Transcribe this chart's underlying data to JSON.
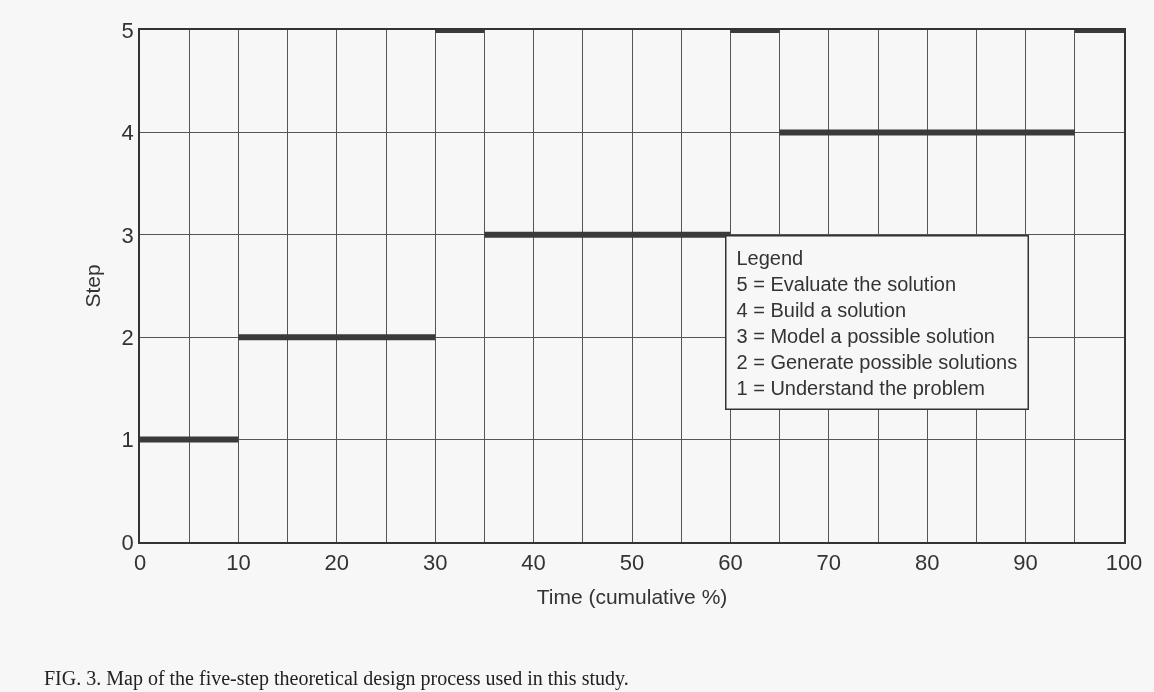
{
  "chart_data": {
    "type": "line",
    "xlabel": "Time (cumulative %)",
    "ylabel": "Step",
    "xlim": [
      0,
      100
    ],
    "ylim": [
      0,
      5
    ],
    "xticks": [
      0,
      {
        "value": 5,
        "label": null
      },
      10,
      {
        "value": 15,
        "label": null
      },
      20,
      {
        "value": 25,
        "label": null
      },
      30,
      {
        "value": 35,
        "label": null
      },
      40,
      {
        "value": 45,
        "label": null
      },
      50,
      {
        "value": 55,
        "label": null
      },
      60,
      {
        "value": 65,
        "label": null
      },
      70,
      {
        "value": 75,
        "label": null
      },
      80,
      {
        "value": 85,
        "label": null
      },
      90,
      {
        "value": 95,
        "label": null
      },
      100
    ],
    "yticks": [
      0,
      1,
      2,
      3,
      4,
      5
    ],
    "grid": true,
    "marker": "none",
    "line_style": "solid",
    "series": [
      {
        "color": "#3a3a3a",
        "x": [
          0,
          10
        ],
        "values": [
          1,
          1
        ]
      },
      {
        "color": "#3a3a3a",
        "x": [
          10,
          30
        ],
        "values": [
          2,
          2
        ]
      },
      {
        "color": "#3a3a3a",
        "x": [
          30,
          35
        ],
        "values": [
          5,
          5
        ]
      },
      {
        "color": "#3a3a3a",
        "x": [
          35,
          60
        ],
        "values": [
          3,
          3
        ]
      },
      {
        "color": "#3a3a3a",
        "x": [
          60,
          65
        ],
        "values": [
          5,
          5
        ]
      },
      {
        "color": "#3a3a3a",
        "x": [
          65,
          95
        ],
        "values": [
          4,
          4
        ]
      },
      {
        "color": "#3a3a3a",
        "x": [
          95,
          100
        ],
        "values": [
          5,
          5
        ]
      }
    ],
    "annotations": [
      "Legend",
      "5 = Evaluate the solution",
      "4 = Build a solution",
      "3 = Model a possible solution",
      "2 = Generate possible solutions",
      "1 = Understand the problem",
      "FIG. 3. Map of the five-step theoretical design process used in this study."
    ]
  }
}
